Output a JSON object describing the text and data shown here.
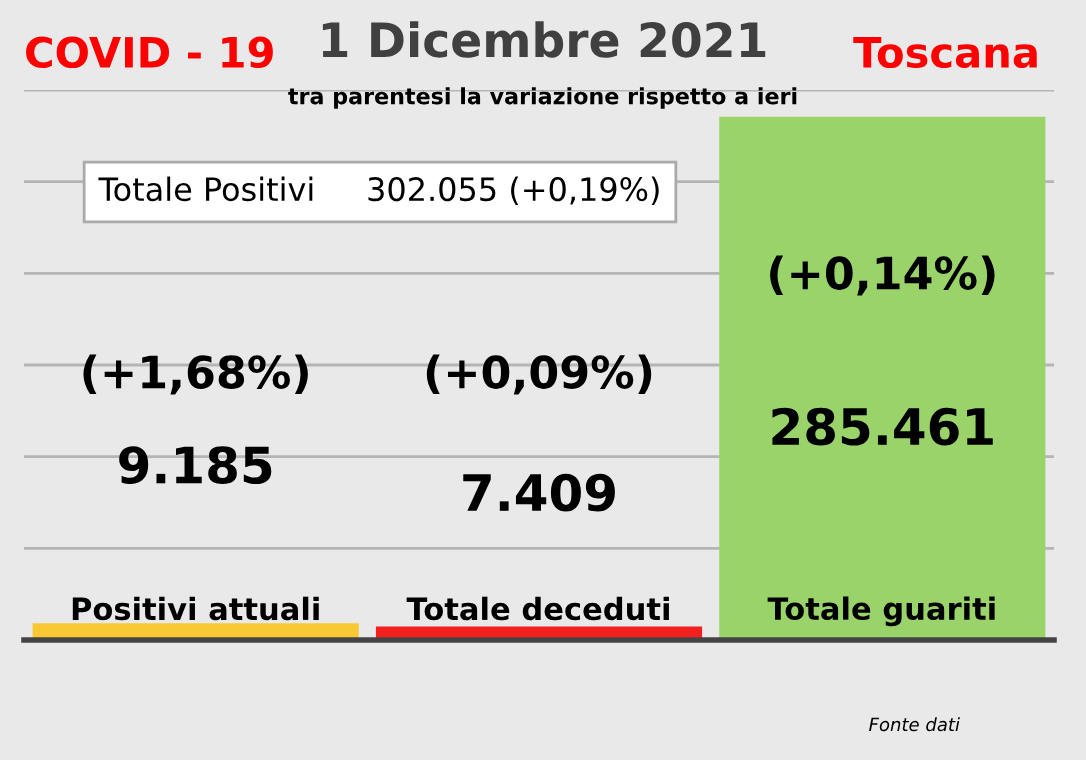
{
  "chart_data": {
    "type": "bar",
    "title": "1 Dicembre 2021",
    "subtitle": "tra parentesi la variazione rispetto a ieri",
    "categories": [
      "Positivi attuali",
      "Totale deceduti",
      "Totale guariti"
    ],
    "values": [
      9185,
      7409,
      285461
    ],
    "colors": [
      "#f9c935",
      "#f42020",
      "#9ad36a"
    ],
    "value_labels": [
      "9.185",
      "7.409",
      "285.461"
    ],
    "ylim": [
      0,
      300000
    ],
    "yticks": [
      {
        "value": 0,
        "label": null
      },
      {
        "value": 50000,
        "label": null
      },
      {
        "value": 100000,
        "label": null
      },
      {
        "value": 150000,
        "label": null
      },
      {
        "value": 200000,
        "label": null
      },
      {
        "value": 250000,
        "label": null
      },
      {
        "value": 300000,
        "label": null
      }
    ],
    "grid": "y",
    "annotations": [
      "COVID - 19",
      "Toscana",
      "Totale Positivi     302.055 (+0,19%)",
      "(+1,68%)",
      "(+0,09%)",
      "(+0,14%)",
      "Fonte dati"
    ]
  }
}
